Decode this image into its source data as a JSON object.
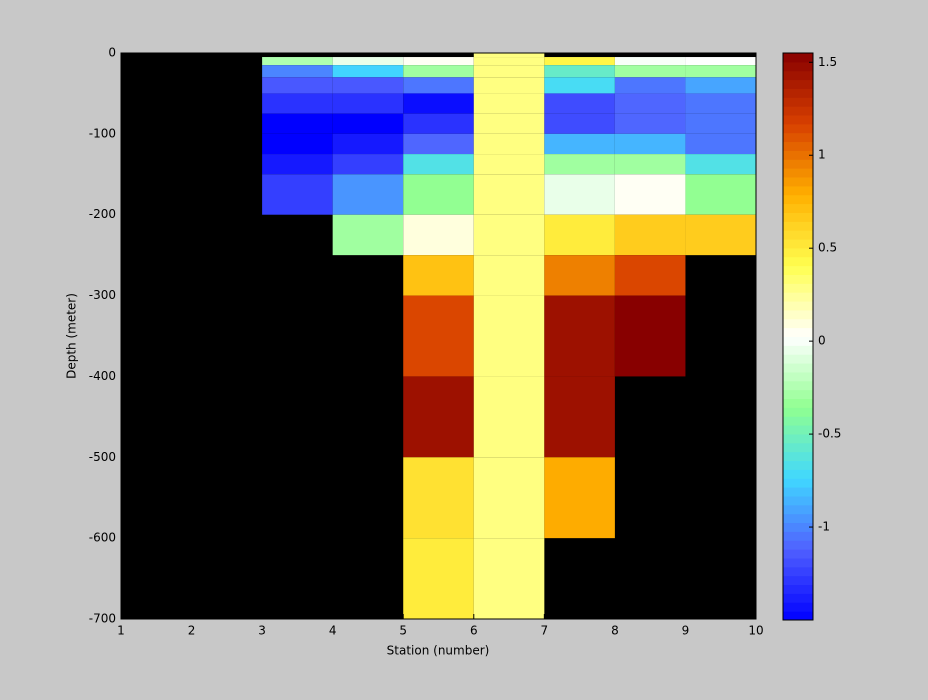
{
  "chart_data": {
    "type": "heatmap",
    "xlabel": "Station (number)",
    "ylabel": "Depth (meter)",
    "x_edges": [
      1,
      2,
      3,
      4,
      5,
      6,
      7,
      8,
      9,
      10
    ],
    "y_edges": [
      0,
      -5,
      -15,
      -30,
      -50,
      -75,
      -100,
      -125,
      -150,
      -200,
      -250,
      -300,
      -400,
      -500,
      -600,
      -700
    ],
    "values": [
      [
        null,
        null,
        null,
        null,
        null,
        0.3,
        null,
        null,
        null
      ],
      [
        null,
        null,
        -0.25,
        -0.05,
        0.05,
        0.3,
        0.45,
        0.0,
        0.02
      ],
      [
        null,
        null,
        -1.0,
        -0.75,
        -0.3,
        0.3,
        -0.55,
        -0.3,
        -0.3
      ],
      [
        null,
        null,
        -1.15,
        -1.15,
        -1.05,
        0.3,
        -0.7,
        -1.05,
        -0.9
      ],
      [
        null,
        null,
        -1.3,
        -1.3,
        -1.45,
        0.3,
        -1.2,
        -1.1,
        -1.05
      ],
      [
        null,
        null,
        -1.5,
        -1.5,
        -1.3,
        0.3,
        -1.2,
        -1.1,
        -1.05
      ],
      [
        null,
        null,
        -1.5,
        -1.4,
        -1.1,
        0.3,
        -0.85,
        -0.85,
        -1.05
      ],
      [
        null,
        null,
        -1.4,
        -1.25,
        -0.65,
        0.3,
        -0.3,
        -0.3,
        -0.65
      ],
      [
        null,
        null,
        -1.25,
        -0.95,
        -0.35,
        0.3,
        -0.05,
        0.05,
        -0.35
      ],
      [
        null,
        null,
        null,
        -0.3,
        0.1,
        0.3,
        0.5,
        0.65,
        0.65
      ],
      [
        null,
        null,
        null,
        null,
        0.7,
        0.3,
        0.95,
        1.15,
        null
      ],
      [
        null,
        null,
        null,
        null,
        1.15,
        0.3,
        1.45,
        1.55,
        null
      ],
      [
        null,
        null,
        null,
        null,
        1.45,
        0.3,
        1.45,
        null,
        null
      ],
      [
        null,
        null,
        null,
        null,
        0.55,
        0.3,
        0.8,
        null,
        null
      ],
      [
        null,
        null,
        null,
        null,
        0.5,
        0.3,
        null,
        null,
        null
      ]
    ],
    "xlim": [
      1,
      10
    ],
    "ylim": [
      -700,
      0
    ],
    "xticks": [
      1,
      2,
      3,
      4,
      5,
      6,
      7,
      8,
      9,
      10
    ],
    "yticks": [
      0,
      -100,
      -200,
      -300,
      -400,
      -500,
      -600,
      -700
    ],
    "clim": [
      -1.5,
      1.55
    ],
    "cticks": [
      -1,
      -0.5,
      0,
      0.5,
      1,
      1.5
    ],
    "colormap": [
      "#0000ff",
      "#5060ff",
      "#40d8ff",
      "#90ff90",
      "#ffffff",
      "#ffff50",
      "#ffb000",
      "#d84000",
      "#880000"
    ],
    "missing_color": "#000000"
  }
}
